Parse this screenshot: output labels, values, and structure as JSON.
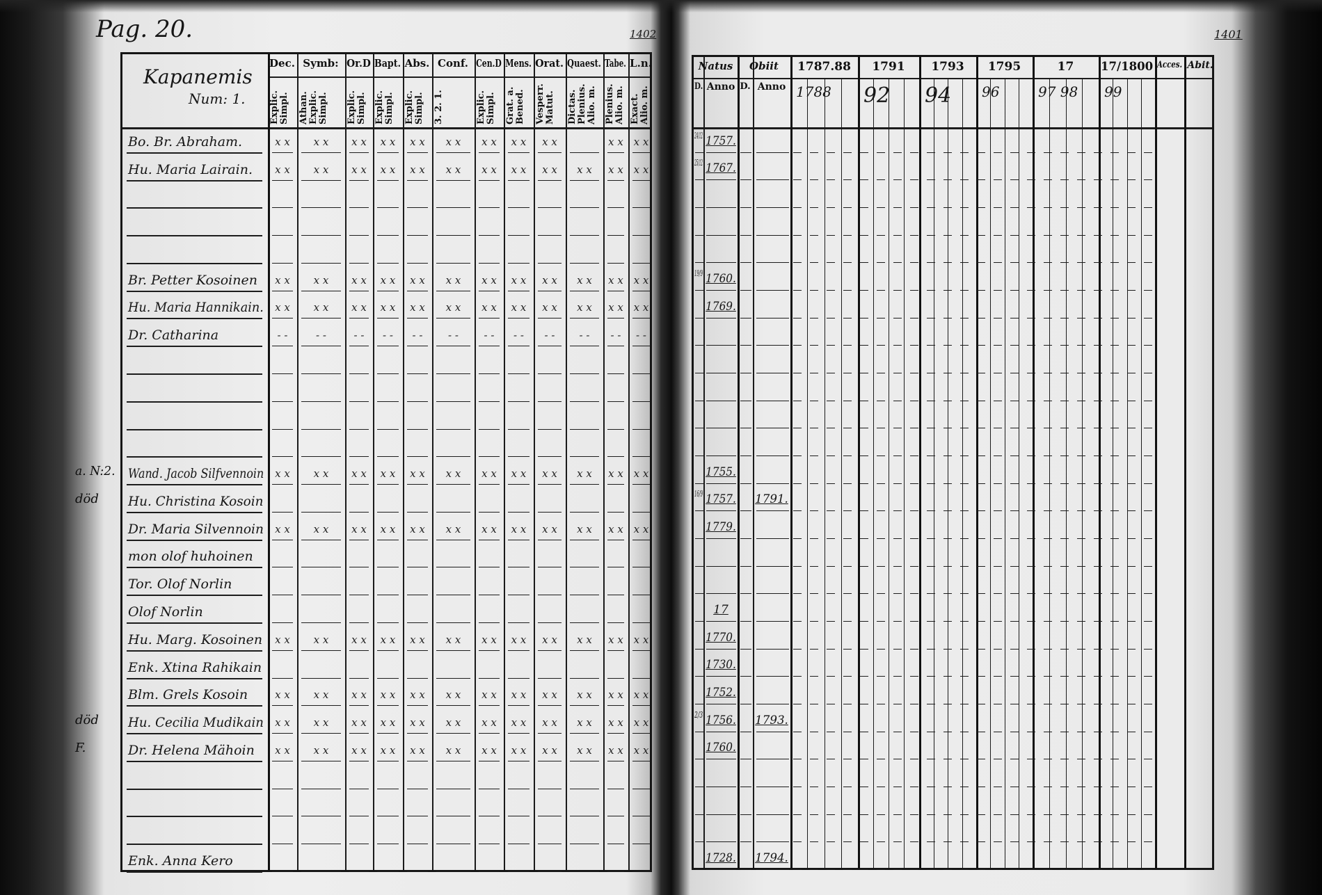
{
  "page_left": {
    "page_label": "Pag. 20.",
    "corner_number": "1402",
    "title": "Kapanemis",
    "subtitle": "Num: 1.",
    "columns": [
      {
        "top": "Dec.",
        "sub": "Explic. Simpl."
      },
      {
        "top": "Symb:",
        "sub": "Athan. Explic. Simpl."
      },
      {
        "top": "Or.D",
        "sub": "Explic. Simpl."
      },
      {
        "top": "Bapt.",
        "sub": "Explic. Simpl."
      },
      {
        "top": "Abs.",
        "sub": "Explic. Simpl."
      },
      {
        "top": "Conf.",
        "sub": "3. 2. 1."
      },
      {
        "top": "Cen.D",
        "sub": "Explic. Simpl."
      },
      {
        "top": "Mens.",
        "sub": "Grat. a. Bened."
      },
      {
        "top": "Orat.",
        "sub": "Vesperr. Matut."
      },
      {
        "top": "Quaest.",
        "sub": "Dictas. Plenius. Alio. m."
      },
      {
        "top": "Tabe.",
        "sub": "Plenius. Alio. m."
      },
      {
        "top": "L.n.",
        "sub": "Exact. Alio. m."
      }
    ],
    "margin_notes": [
      {
        "row": 12,
        "text": "a. N:2."
      },
      {
        "row": 13,
        "text": "död"
      },
      {
        "row": 21,
        "text": "död"
      },
      {
        "row": 22,
        "text": "F."
      }
    ],
    "rows": [
      {
        "row": 0,
        "name": "Bo. Br. Abraham.",
        "marks": "x x"
      },
      {
        "row": 1,
        "name": "Hu. Maria Lairain.",
        "marks": "x x"
      },
      {
        "row": 5,
        "name": "Br. Petter Kosoinen",
        "marks": "x x"
      },
      {
        "row": 6,
        "name": "Hu. Maria Hannikain.",
        "marks": "x x"
      },
      {
        "row": 7,
        "name": "Dr. Catharina",
        "marks": "- -"
      },
      {
        "row": 12,
        "name": "Wand. Jacob Silfvennoin",
        "marks": "x x"
      },
      {
        "row": 13,
        "name": "Hu. Christina Kosoin",
        "marks": ""
      },
      {
        "row": 14,
        "name": "Dr. Maria Silvennoin",
        "marks": "x x"
      },
      {
        "row": 15,
        "name": "mon olof huhoinen",
        "marks": ""
      },
      {
        "row": 16,
        "name": "Tor. Olof Norlin",
        "marks": ""
      },
      {
        "row": 17,
        "name": "Olof Norlin",
        "marks": ""
      },
      {
        "row": 18,
        "name": "Hu. Marg. Kosoinen",
        "marks": "x x"
      },
      {
        "row": 19,
        "name": "Enk. Xtina Rahikain",
        "marks": ""
      },
      {
        "row": 20,
        "name": "Blm. Grels Kosoin",
        "marks": "x x"
      },
      {
        "row": 21,
        "name": "Hu. Cecilia Mudikain",
        "marks": "x x"
      },
      {
        "row": 22,
        "name": "Dr. Helena Mähoin",
        "marks": "x x"
      },
      {
        "row": 26,
        "name": "Enk. Anna Kero",
        "marks": ""
      }
    ]
  },
  "page_right": {
    "corner_number": "1401",
    "header": {
      "natus": "Natus",
      "obiit": "Obiit",
      "d": "D.",
      "anno": "Anno",
      "year_groups": [
        {
          "label": "1787.88",
          "sub": "1788"
        },
        {
          "label": "1791",
          "sub": "92"
        },
        {
          "label": "1793",
          "sub": "94"
        },
        {
          "label": "1795",
          "sub": "96"
        },
        {
          "label": "17",
          "sub": "97  98"
        },
        {
          "label": "17/1800",
          "sub": "99"
        }
      ],
      "acces": "Acces.",
      "abit": "Abit."
    },
    "rows": [
      {
        "row": 0,
        "natus_d": "24/12",
        "natus_anno": "1757.",
        "obiit_anno": ""
      },
      {
        "row": 1,
        "natus_d": "25/12",
        "natus_anno": "1767.",
        "obiit_anno": ""
      },
      {
        "row": 5,
        "natus_d": "19/9",
        "natus_anno": "1760.",
        "obiit_anno": ""
      },
      {
        "row": 6,
        "natus_d": "",
        "natus_anno": "1769.",
        "obiit_anno": ""
      },
      {
        "row": 12,
        "natus_d": "",
        "natus_anno": "1755.",
        "obiit_anno": ""
      },
      {
        "row": 13,
        "natus_d": "16/9",
        "natus_anno": "1757.",
        "obiit_anno": "1791."
      },
      {
        "row": 14,
        "natus_d": "",
        "natus_anno": "1779.",
        "obiit_anno": ""
      },
      {
        "row": 17,
        "natus_d": "",
        "natus_anno": "17",
        "obiit_anno": ""
      },
      {
        "row": 18,
        "natus_d": "",
        "natus_anno": "1770.",
        "obiit_anno": ""
      },
      {
        "row": 19,
        "natus_d": "",
        "natus_anno": "1730.",
        "obiit_anno": ""
      },
      {
        "row": 20,
        "natus_d": "",
        "natus_anno": "1752.",
        "obiit_anno": ""
      },
      {
        "row": 21,
        "natus_d": "2/3",
        "natus_anno": "1756.",
        "obiit_anno": "1793."
      },
      {
        "row": 22,
        "natus_d": "",
        "natus_anno": "1760.",
        "obiit_anno": ""
      },
      {
        "row": 26,
        "natus_d": "",
        "natus_anno": "1728.",
        "obiit_anno": "1794."
      }
    ]
  }
}
